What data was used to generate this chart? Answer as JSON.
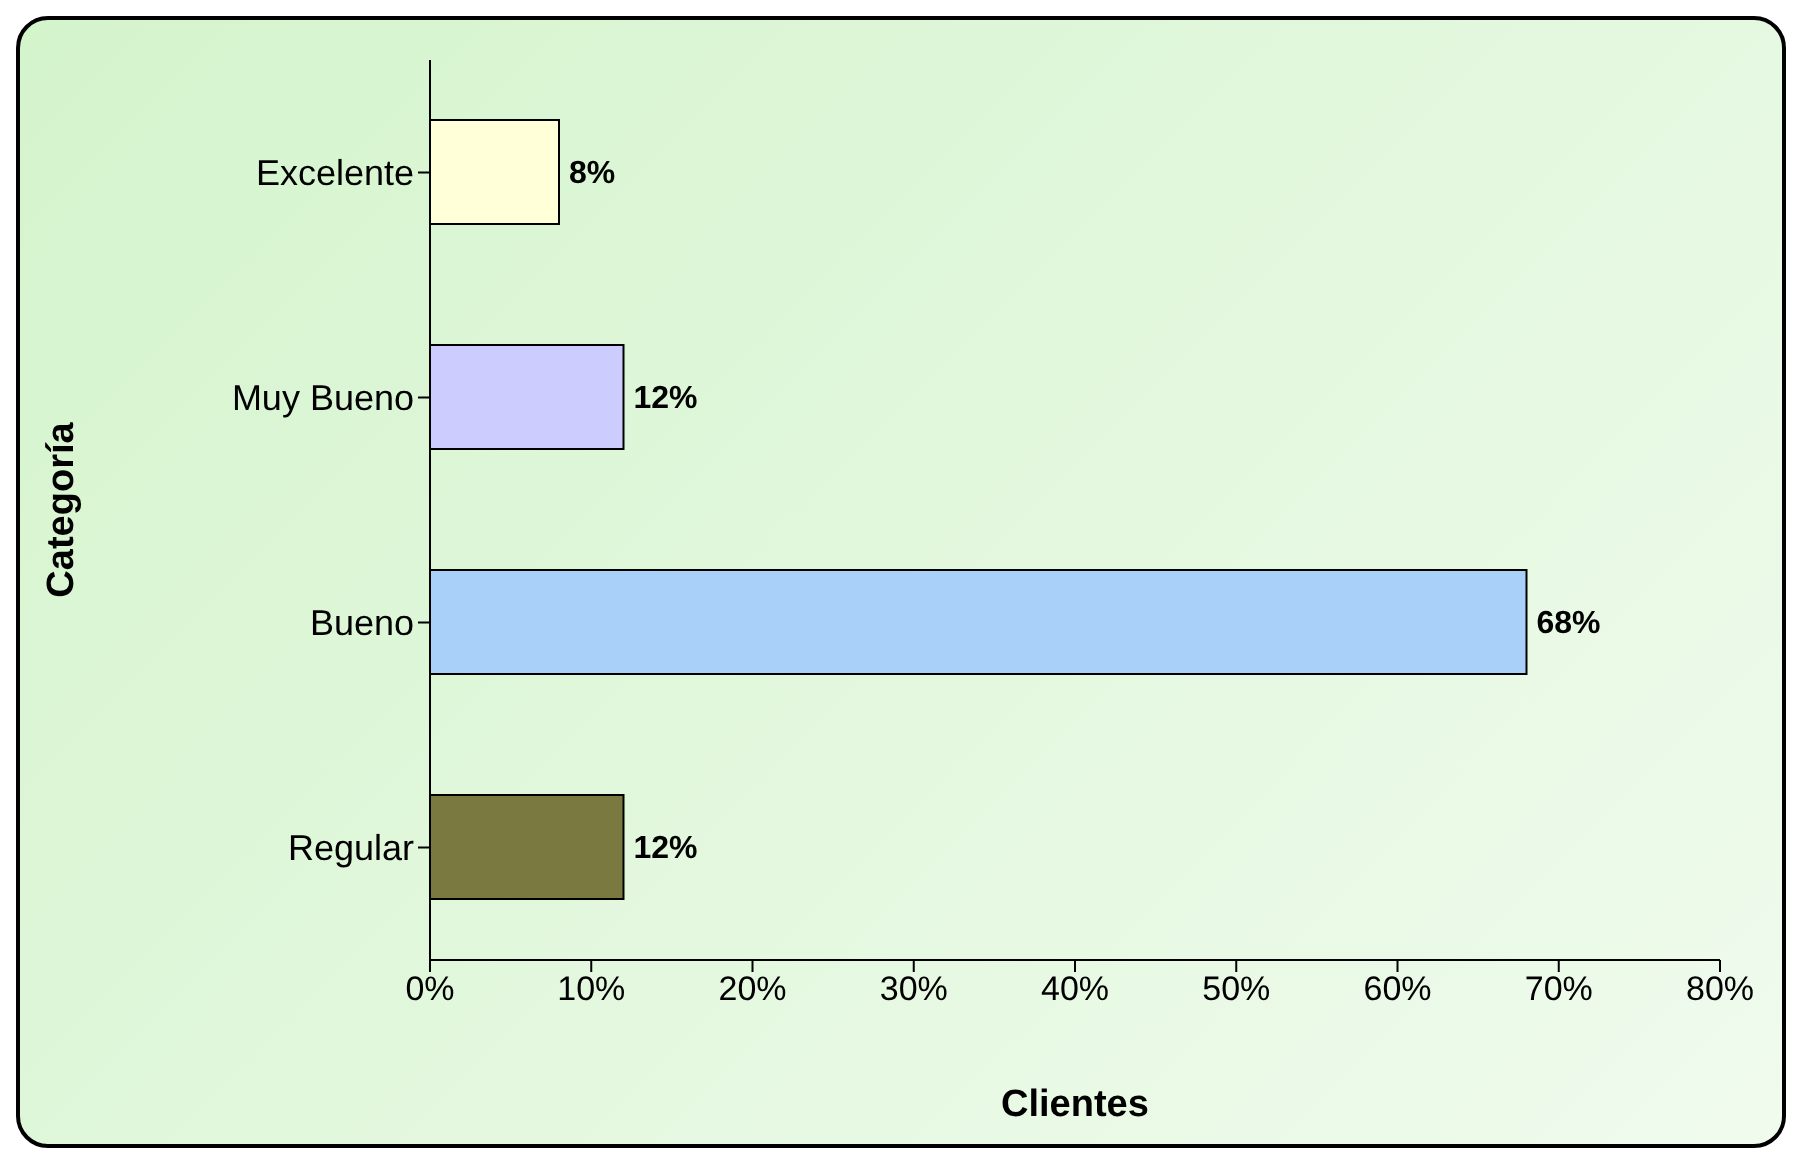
{
  "chart_data": {
    "type": "bar",
    "orientation": "horizontal",
    "xlabel": "Clientes",
    "ylabel": "Categoría",
    "categories": [
      "Excelente",
      "Muy Bueno",
      "Bueno",
      "Regular"
    ],
    "values": [
      8,
      12,
      68,
      12
    ],
    "value_labels": [
      "8%",
      "12%",
      "68%",
      "12%"
    ],
    "colors": [
      "#ffffd8",
      "#ccccff",
      "#a8d0f8",
      "#7a7a40"
    ],
    "xlim": [
      0,
      80
    ],
    "xticks": [
      {
        "value": 0,
        "label": "0%"
      },
      {
        "value": 10,
        "label": "10%"
      },
      {
        "value": 20,
        "label": "20%"
      },
      {
        "value": 30,
        "label": "30%"
      },
      {
        "value": 40,
        "label": "40%"
      },
      {
        "value": 50,
        "label": "50%"
      },
      {
        "value": 60,
        "label": "60%"
      },
      {
        "value": 70,
        "label": "70%"
      },
      {
        "value": 80,
        "label": "80%"
      }
    ]
  }
}
